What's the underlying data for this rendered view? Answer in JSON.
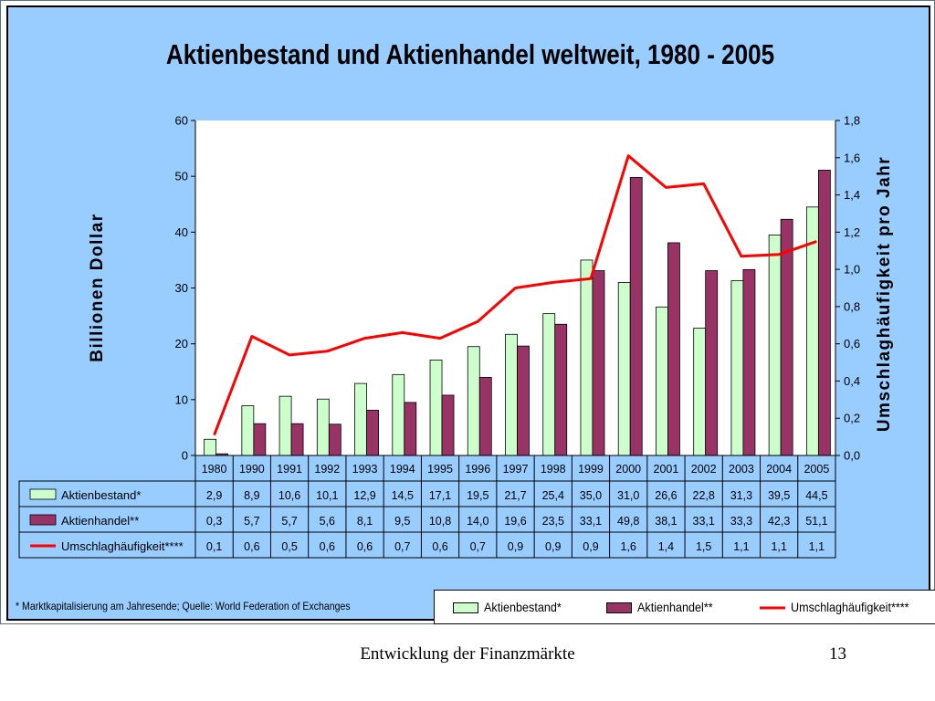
{
  "chart_data": {
    "type": "bar",
    "title": "Aktienbestand und Aktienhandel weltweit, 1980 - 2005",
    "ylabel": "Billionen  Dollar",
    "y2label": "Umschlaghäufigkeit pro Jahr",
    "ylim": [
      0,
      60
    ],
    "y2lim": [
      0.0,
      1.8
    ],
    "yticks": [
      "0",
      "10",
      "20",
      "30",
      "40",
      "50",
      "60"
    ],
    "y2ticks": [
      "0,0",
      "0,2",
      "0,4",
      "0,6",
      "0,8",
      "1,0",
      "1,2",
      "1,4",
      "1,6",
      "1,8"
    ],
    "categories": [
      "1980",
      "1990",
      "1991",
      "1992",
      "1993",
      "1994",
      "1995",
      "1996",
      "1997",
      "1998",
      "1999",
      "2000",
      "2001",
      "2002",
      "2003",
      "2004",
      "2005"
    ],
    "series": [
      {
        "name": "Aktienbestand*",
        "type": "bar",
        "axis": "left",
        "color": "#ccffcc",
        "values": [
          2.9,
          8.9,
          10.6,
          10.1,
          12.9,
          14.5,
          17.1,
          19.5,
          21.7,
          25.4,
          35.0,
          31.0,
          26.6,
          22.8,
          31.3,
          39.5,
          44.5
        ],
        "labels": [
          "2,9",
          "8,9",
          "10,6",
          "10,1",
          "12,9",
          "14,5",
          "17,1",
          "19,5",
          "21,7",
          "25,4",
          "35,0",
          "31,0",
          "26,6",
          "22,8",
          "31,3",
          "39,5",
          "44,5"
        ]
      },
      {
        "name": "Aktienhandel**",
        "type": "bar",
        "axis": "left",
        "color": "#993366",
        "values": [
          0.3,
          5.7,
          5.7,
          5.6,
          8.1,
          9.5,
          10.8,
          14.0,
          19.6,
          23.5,
          33.1,
          49.8,
          38.1,
          33.1,
          33.3,
          42.3,
          51.1
        ],
        "labels": [
          "0,3",
          "5,7",
          "5,7",
          "5,6",
          "8,1",
          "9,5",
          "10,8",
          "14,0",
          "19,6",
          "23,5",
          "33,1",
          "49,8",
          "38,1",
          "33,1",
          "33,3",
          "42,3",
          "51,1"
        ]
      },
      {
        "name": "Umschlaghäufigkeit****",
        "type": "line",
        "axis": "right",
        "color": "#ff0000",
        "values": [
          0.11,
          0.64,
          0.54,
          0.56,
          0.63,
          0.66,
          0.63,
          0.72,
          0.9,
          0.93,
          0.95,
          1.61,
          1.44,
          1.46,
          1.07,
          1.08,
          1.15
        ],
        "labels": [
          "0,1",
          "0,6",
          "0,5",
          "0,6",
          "0,6",
          "0,7",
          "0,6",
          "0,7",
          "0,9",
          "0,9",
          "0,9",
          "1,6",
          "1,4",
          "1,5",
          "1,1",
          "1,1",
          "1,1"
        ]
      }
    ],
    "legend_position": "bottom-right",
    "data_table": true,
    "grid": false
  },
  "footnote": "* Marktkapitalisierung am Jahresende; Quelle: World Federation of Exchanges",
  "colors": {
    "background": "#99ccff",
    "plot_area": "#ffffff"
  },
  "footer": {
    "title": "Entwicklung der Finanzmärkte",
    "page_number": "13"
  }
}
